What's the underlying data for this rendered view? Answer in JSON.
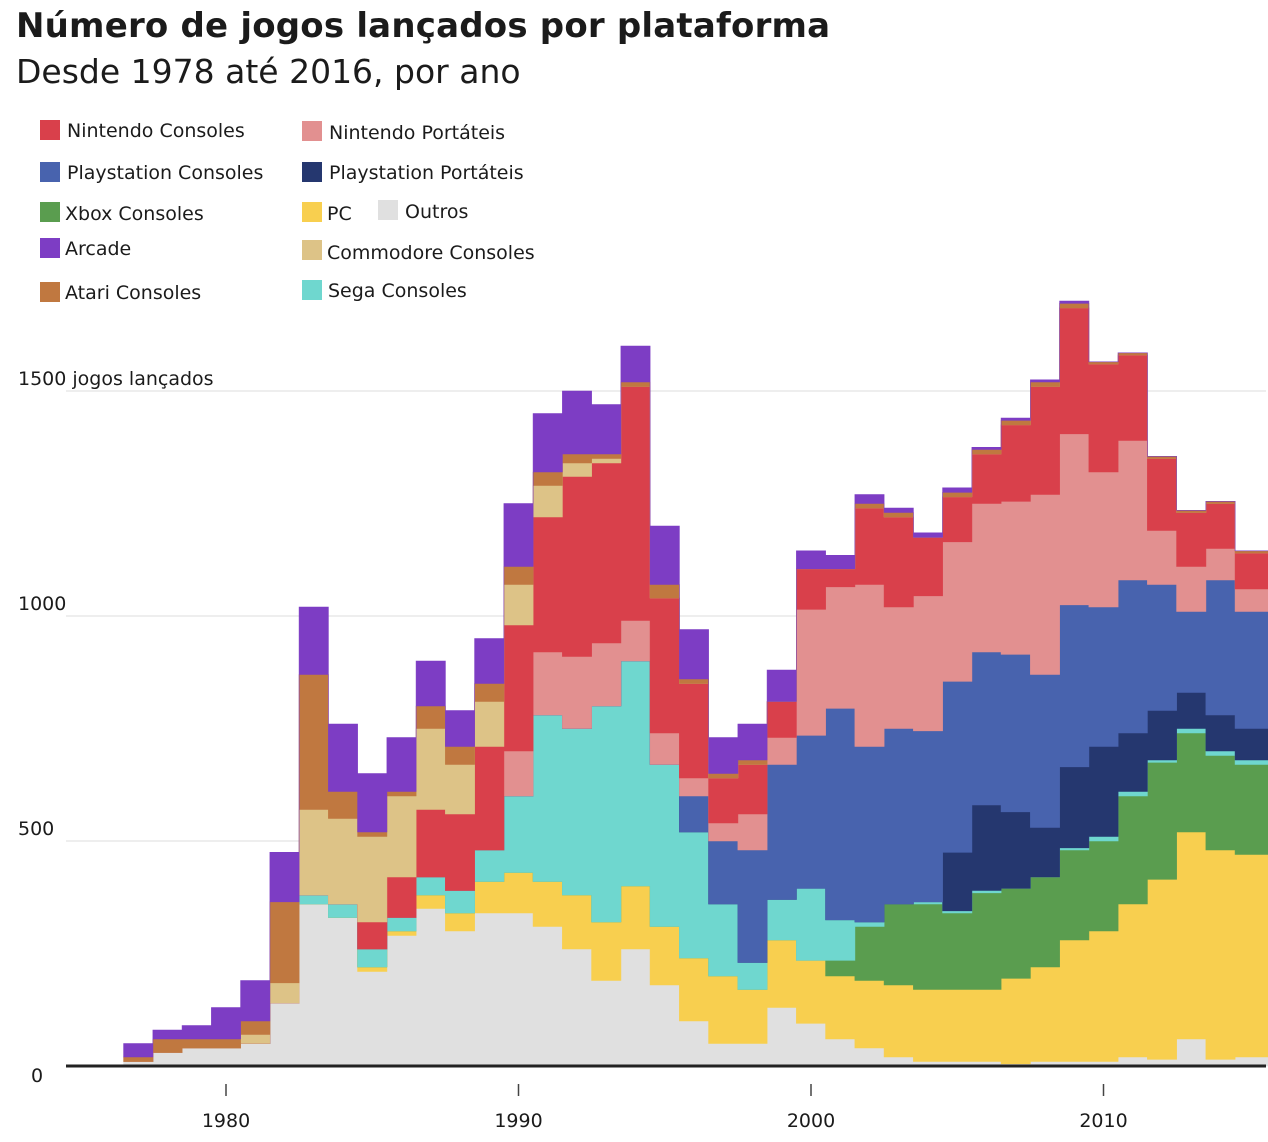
{
  "page": {
    "title": "Número de jogos lançados por plataforma",
    "subtitle": "Desde 1978 até 2016, por ano"
  },
  "chart_data": {
    "type": "area",
    "title": "Número de jogos lançados por plataforma",
    "subtitle": "Desde 1978 até 2016, por ano",
    "xlabel": "",
    "ylabel": "",
    "ylim": [
      0,
      1800
    ],
    "xlim": [
      1975,
      2016
    ],
    "stacked": true,
    "step": true,
    "grid": true,
    "legend_position": "top-left",
    "y_ticks": [
      {
        "value": 0,
        "label": "0"
      },
      {
        "value": 500,
        "label": "500"
      },
      {
        "value": 1000,
        "label": "1000"
      },
      {
        "value": 1500,
        "label": "1500 jogos lançados"
      }
    ],
    "x_ticks": [
      {
        "value": 1980,
        "label": "1980"
      },
      {
        "value": 1990,
        "label": "1990"
      },
      {
        "value": 2000,
        "label": "2000"
      },
      {
        "value": 2010,
        "label": "2010"
      }
    ],
    "x": [
      1977,
      1978,
      1979,
      1980,
      1981,
      1982,
      1983,
      1984,
      1985,
      1986,
      1987,
      1988,
      1989,
      1990,
      1991,
      1992,
      1993,
      1994,
      1995,
      1996,
      1997,
      1998,
      1999,
      2000,
      2001,
      2002,
      2003,
      2004,
      2005,
      2006,
      2007,
      2008,
      2009,
      2010,
      2011,
      2012,
      2013,
      2014,
      2015,
      2016
    ],
    "series": [
      {
        "name": "Outros",
        "color": "#e0e0e0",
        "values": [
          10,
          30,
          40,
          40,
          50,
          140,
          360,
          330,
          210,
          290,
          350,
          300,
          340,
          340,
          310,
          260,
          190,
          260,
          180,
          100,
          50,
          50,
          130,
          95,
          60,
          40,
          20,
          10,
          10,
          10,
          5,
          10,
          10,
          10,
          20,
          15,
          60,
          15,
          20,
          20
        ]
      },
      {
        "name": "PC",
        "color": "#f8cf4f",
        "values": [
          0,
          0,
          0,
          0,
          0,
          0,
          0,
          0,
          10,
          10,
          30,
          40,
          70,
          90,
          100,
          120,
          130,
          140,
          130,
          140,
          150,
          120,
          150,
          140,
          140,
          150,
          160,
          160,
          160,
          160,
          190,
          210,
          270,
          290,
          340,
          400,
          460,
          465,
          450,
          450
        ]
      },
      {
        "name": "Xbox Consoles",
        "color": "#5a9d4f",
        "values": [
          0,
          0,
          0,
          0,
          0,
          0,
          0,
          0,
          0,
          0,
          0,
          0,
          0,
          0,
          0,
          0,
          0,
          0,
          0,
          0,
          0,
          0,
          0,
          0,
          35,
          120,
          180,
          190,
          170,
          215,
          200,
          200,
          200,
          200,
          240,
          260,
          220,
          210,
          200,
          200
        ]
      },
      {
        "name": "Sega Consoles",
        "color": "#6fd7cf",
        "values": [
          0,
          0,
          0,
          0,
          0,
          0,
          20,
          30,
          40,
          30,
          40,
          50,
          70,
          170,
          370,
          370,
          480,
          500,
          360,
          280,
          160,
          60,
          90,
          160,
          90,
          10,
          0,
          5,
          5,
          5,
          0,
          0,
          5,
          10,
          10,
          5,
          10,
          10,
          10,
          10
        ]
      },
      {
        "name": "Playstation Portáteis",
        "color": "#25376f",
        "values": [
          0,
          0,
          0,
          0,
          0,
          0,
          0,
          0,
          0,
          0,
          0,
          0,
          0,
          0,
          0,
          0,
          0,
          0,
          0,
          0,
          0,
          0,
          0,
          0,
          0,
          0,
          0,
          0,
          130,
          190,
          170,
          110,
          180,
          200,
          130,
          110,
          80,
          80,
          70,
          70
        ]
      },
      {
        "name": "Playstation Consoles",
        "color": "#4863ae",
        "values": [
          0,
          0,
          0,
          0,
          0,
          0,
          0,
          0,
          0,
          0,
          0,
          0,
          0,
          0,
          0,
          0,
          0,
          0,
          0,
          80,
          140,
          250,
          300,
          340,
          470,
          390,
          390,
          380,
          380,
          340,
          350,
          340,
          360,
          310,
          340,
          280,
          180,
          300,
          260,
          260
        ]
      },
      {
        "name": "Nintendo Portáteis",
        "color": "#e29090",
        "values": [
          0,
          0,
          0,
          0,
          0,
          0,
          0,
          0,
          0,
          0,
          0,
          0,
          0,
          100,
          140,
          160,
          140,
          90,
          70,
          40,
          40,
          80,
          60,
          280,
          270,
          360,
          270,
          300,
          310,
          330,
          340,
          400,
          380,
          300,
          310,
          120,
          100,
          70,
          50,
          50
        ]
      },
      {
        "name": "Nintendo Consoles",
        "color": "#d9404b",
        "values": [
          0,
          0,
          0,
          0,
          0,
          0,
          0,
          0,
          60,
          90,
          150,
          170,
          230,
          280,
          300,
          400,
          400,
          520,
          300,
          210,
          100,
          110,
          80,
          90,
          40,
          170,
          200,
          130,
          100,
          110,
          170,
          240,
          280,
          240,
          190,
          160,
          120,
          100,
          80,
          80
        ]
      },
      {
        "name": "Commodore Consoles",
        "color": "#ddc387",
        "values": [
          0,
          0,
          0,
          0,
          20,
          45,
          190,
          190,
          190,
          180,
          180,
          110,
          100,
          90,
          70,
          30,
          10,
          0,
          0,
          0,
          0,
          0,
          0,
          0,
          0,
          0,
          0,
          0,
          0,
          0,
          0,
          0,
          0,
          0,
          0,
          0,
          0,
          0,
          0,
          0
        ]
      },
      {
        "name": "Atari Consoles",
        "color": "#c07840",
        "values": [
          10,
          30,
          20,
          20,
          30,
          180,
          300,
          60,
          10,
          10,
          50,
          40,
          40,
          40,
          30,
          20,
          10,
          10,
          30,
          10,
          10,
          10,
          0,
          0,
          0,
          10,
          10,
          0,
          10,
          10,
          10,
          10,
          10,
          5,
          5,
          5,
          5,
          5,
          5,
          5
        ]
      },
      {
        "name": "Arcade",
        "color": "#7d3dc4",
        "values": [
          30,
          20,
          30,
          70,
          90,
          110,
          150,
          150,
          130,
          120,
          100,
          80,
          100,
          140,
          130,
          140,
          110,
          80,
          130,
          110,
          80,
          80,
          70,
          40,
          30,
          20,
          10,
          10,
          10,
          5,
          5,
          5,
          5,
          0,
          0,
          0,
          0,
          0,
          0,
          0
        ]
      }
    ],
    "totals_note": ""
  },
  "legend": {
    "items": [
      {
        "label": "Nintendo Consoles",
        "color": "#d9404b"
      },
      {
        "label": "Nintendo Portáteis",
        "color": "#e29090"
      },
      {
        "label": "Playstation Consoles",
        "color": "#4863ae"
      },
      {
        "label": "Playstation Portáteis",
        "color": "#25376f"
      },
      {
        "label": "Xbox Consoles",
        "color": "#5a9d4f"
      },
      {
        "label": "PC",
        "color": "#f8cf4f"
      },
      {
        "label": "Outros",
        "color": "#e0e0e0"
      },
      {
        "label": "Arcade",
        "color": "#7d3dc4"
      },
      {
        "label": "Commodore Consoles",
        "color": "#ddc387"
      },
      {
        "label": "Atari Consoles",
        "color": "#c07840"
      },
      {
        "label": "Sega Consoles",
        "color": "#6fd7cf"
      }
    ]
  }
}
